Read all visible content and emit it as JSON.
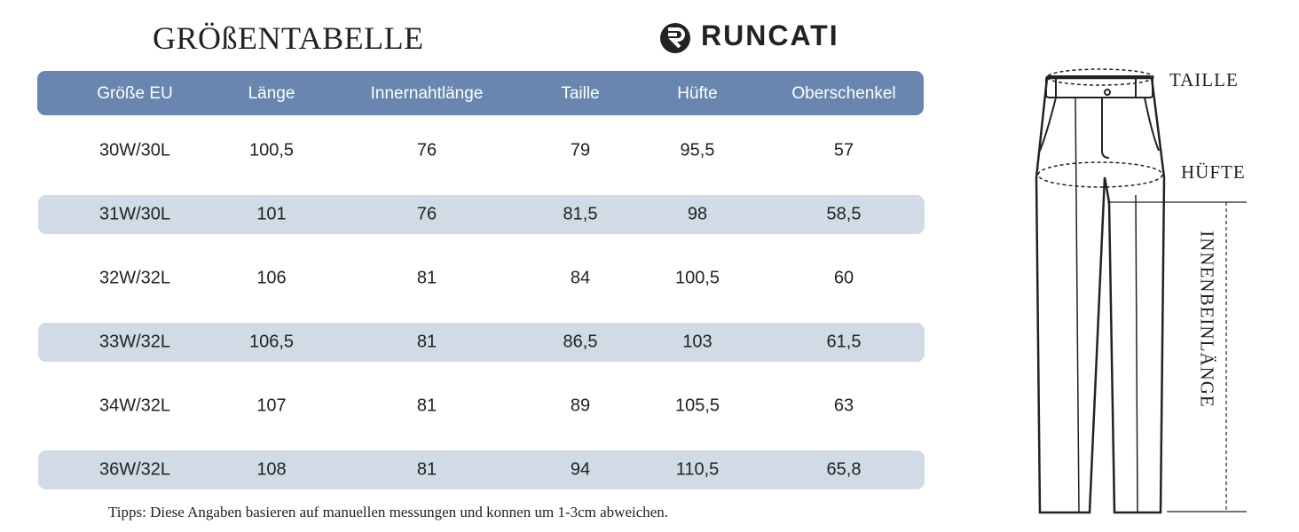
{
  "header": {
    "title": "GRÖßENTABELLE",
    "brand": "RUNCATI"
  },
  "table": {
    "columns": [
      "Größe EU",
      "Länge",
      "Innernahtlänge",
      "Taille",
      "Hüfte",
      "Oberschenkel"
    ],
    "rows": [
      [
        "30W/30L",
        "100,5",
        "76",
        "79",
        "95,5",
        "57"
      ],
      [
        "31W/30L",
        "101",
        "76",
        "81,5",
        "98",
        "58,5"
      ],
      [
        "32W/32L",
        "106",
        "81",
        "84",
        "100,5",
        "60"
      ],
      [
        "33W/32L",
        "106,5",
        "81",
        "86,5",
        "103",
        "61,5"
      ],
      [
        "34W/32L",
        "107",
        "81",
        "89",
        "105,5",
        "63"
      ],
      [
        "36W/32L",
        "108",
        "81",
        "94",
        "110,5",
        "65,8"
      ]
    ]
  },
  "tip": "Tipps: Diese Angaben basieren auf manuellen messungen und konnen um 1-3cm abweichen.",
  "diagram": {
    "labels": [
      "TAILLE",
      "HÜFTE",
      "INNENBEINLÄNGE"
    ]
  }
}
